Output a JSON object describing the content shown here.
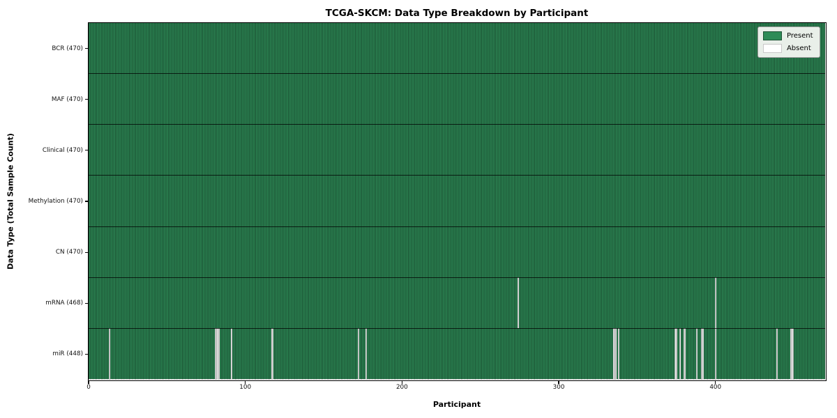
{
  "chart_data": {
    "type": "heatmap",
    "title": "TCGA-SKCM: Data Type Breakdown by Participant",
    "xlabel": "Participant",
    "ylabel": "Data Type (Total Sample Count)",
    "xlim": [
      0,
      470
    ],
    "n_participants": 470,
    "x_ticks": [
      0,
      100,
      200,
      300,
      400
    ],
    "grid": false,
    "legend": {
      "position": "upper right",
      "entries": [
        {
          "label": "Present",
          "color": "#2e8b57"
        },
        {
          "label": "Absent",
          "color": "#ffffff"
        }
      ]
    },
    "rows": [
      {
        "label": "BCR (470)",
        "data_type": "BCR",
        "present_count": 470,
        "absent_participants": []
      },
      {
        "label": "MAF (470)",
        "data_type": "MAF",
        "present_count": 470,
        "absent_participants": []
      },
      {
        "label": "Clinical (470)",
        "data_type": "Clinical",
        "present_count": 470,
        "absent_participants": []
      },
      {
        "label": "Methylation (470)",
        "data_type": "Methylation",
        "present_count": 470,
        "absent_participants": []
      },
      {
        "label": "CN (470)",
        "data_type": "CN",
        "present_count": 470,
        "absent_participants": []
      },
      {
        "label": "mRNA (468)",
        "data_type": "mRNA",
        "present_count": 468,
        "absent_participants": [
          274,
          400
        ]
      },
      {
        "label": "miR (448)",
        "data_type": "miR",
        "present_count": 448,
        "absent_participants": [
          13,
          81,
          82,
          83,
          91,
          117,
          172,
          177,
          335,
          336,
          338,
          374,
          375,
          377,
          380,
          388,
          391,
          392,
          400,
          439,
          448,
          449
        ]
      }
    ],
    "colors": {
      "present": "#2e8b57",
      "absent": "#ffffff",
      "cell_edge": "rgba(0,0,0,0.5)",
      "row_separator": "rgba(0,0,0,0.75)",
      "plot_border": "#000000",
      "legend_bg": "#e9efe9",
      "legend_border": "#999999",
      "present_swatch_border": "#1b5233",
      "absent_swatch_border": "#c8c8c8"
    }
  }
}
